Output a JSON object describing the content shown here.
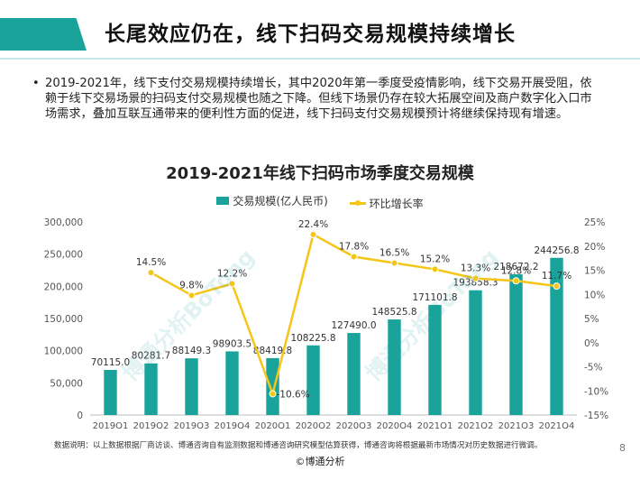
{
  "header": {
    "title": "长尾效应仍在，线下扫码交易规模持续增长"
  },
  "bullet": {
    "text": "2019-2021年，线下支付交易规模持续增长，其中2020年第一季度受疫情影响，线下交易开展受阻，依赖于线下交易场景的扫码支付交易规模也随之下降。但线下场景仍存在较大拓展空间及商户数字化入口市场需求，叠加互联互通带来的便利性方面的促进，线下扫码支付交易规模预计将继续保持现有增速。"
  },
  "legend": {
    "bar_label": "交易规模(亿人民币)",
    "line_label": "环比增长率"
  },
  "chart_data": {
    "type": "bar",
    "title": "2019-2021年线下扫码市场季度交易规模",
    "categories": [
      "2019Q1",
      "2019Q2",
      "2019Q3",
      "2019Q4",
      "2020Q1",
      "2020Q2",
      "2020Q3",
      "2020Q4",
      "2021Q1",
      "2021Q2",
      "2021Q3",
      "2021Q4"
    ],
    "series": [
      {
        "name": "交易规模(亿人民币)",
        "type": "bar",
        "axis": "left",
        "color": "#1aa39a",
        "values": [
          70115.0,
          80281.7,
          88149.3,
          98903.5,
          88419.8,
          108225.8,
          127490.0,
          148525.8,
          171101.8,
          193858.3,
          218672.2,
          244256.8
        ],
        "labels": [
          "70115.0",
          "80281.7",
          "88149.3",
          "98903.5",
          "88419.8",
          "108225.8",
          "127490.0",
          "148525.8",
          "171101.8",
          "193858.3",
          "218672.2",
          "244256.8"
        ]
      },
      {
        "name": "环比增长率",
        "type": "line",
        "axis": "right",
        "color": "#f5c518",
        "values": [
          null,
          14.5,
          9.8,
          12.2,
          -10.6,
          22.4,
          17.8,
          16.5,
          15.2,
          13.3,
          12.8,
          11.7
        ],
        "labels": [
          "",
          "14.5%",
          "9.8%",
          "12.2%",
          "-10.6%",
          "22.4%",
          "17.8%",
          "16.5%",
          "15.2%",
          "13.3%",
          "12.8%",
          "11.7%"
        ]
      }
    ],
    "y_left": {
      "min": 0,
      "max": 300000,
      "ticks": [
        "0",
        "50,000",
        "100,000",
        "150,000",
        "200,000",
        "250,000",
        "300,000"
      ]
    },
    "y_right": {
      "min": -15,
      "max": 25,
      "ticks": [
        "-15%",
        "-10%",
        "-5%",
        "0%",
        "5%",
        "10%",
        "15%",
        "20%",
        "25%"
      ]
    },
    "grid": false,
    "legend_position": "top-center"
  },
  "footnote": "数据说明：以上数据根据厂商访谈、博通咨询自有监测数据和博通咨询研究模型估算获得，博通咨询将根据最新市场情况对历史数据进行微调。",
  "copyright": "©博通分析",
  "page_number": "8",
  "watermark": {
    "text": "博通分析BoTong"
  }
}
